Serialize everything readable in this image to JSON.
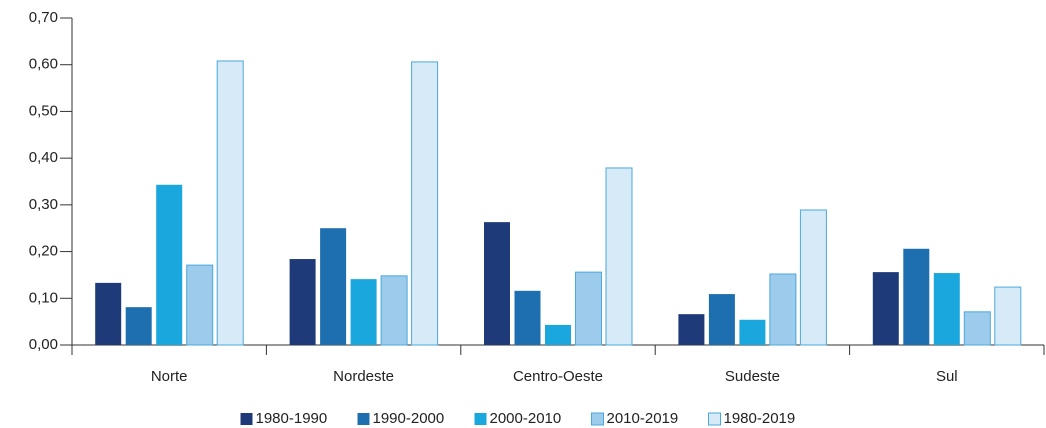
{
  "chart_data": {
    "type": "bar",
    "categories": [
      "Norte",
      "Nordeste",
      "Centro-Oeste",
      "Sudeste",
      "Sul"
    ],
    "series": [
      {
        "name": "1980-1990",
        "color": "#1f3a78",
        "values": [
          0.133,
          0.184,
          0.263,
          0.066,
          0.156
        ]
      },
      {
        "name": "1990-2000",
        "color": "#1e6fb0",
        "values": [
          0.081,
          0.25,
          0.116,
          0.109,
          0.206
        ]
      },
      {
        "name": "2000-2010",
        "color": "#1aa7dd",
        "values": [
          0.343,
          0.141,
          0.043,
          0.054,
          0.154
        ]
      },
      {
        "name": "2010-2019",
        "color": "#9ccbeb",
        "values": [
          0.171,
          0.148,
          0.156,
          0.152,
          0.071
        ]
      },
      {
        "name": "1980-2019",
        "color": "#d6ebf7",
        "values": [
          0.608,
          0.606,
          0.379,
          0.289,
          0.124
        ]
      }
    ],
    "ylim": [
      0,
      0.7
    ],
    "yticks": [
      {
        "value": 0,
        "label": "0,00"
      },
      {
        "value": 0.1,
        "label": "0,10"
      },
      {
        "value": 0.2,
        "label": "0,20"
      },
      {
        "value": 0.3,
        "label": "0,30"
      },
      {
        "value": 0.4,
        "label": "0,40"
      },
      {
        "value": 0.5,
        "label": "0,50"
      },
      {
        "value": 0.6,
        "label": "0,60"
      },
      {
        "value": 0.7,
        "label": "0,70"
      }
    ],
    "legend": "bottom"
  }
}
